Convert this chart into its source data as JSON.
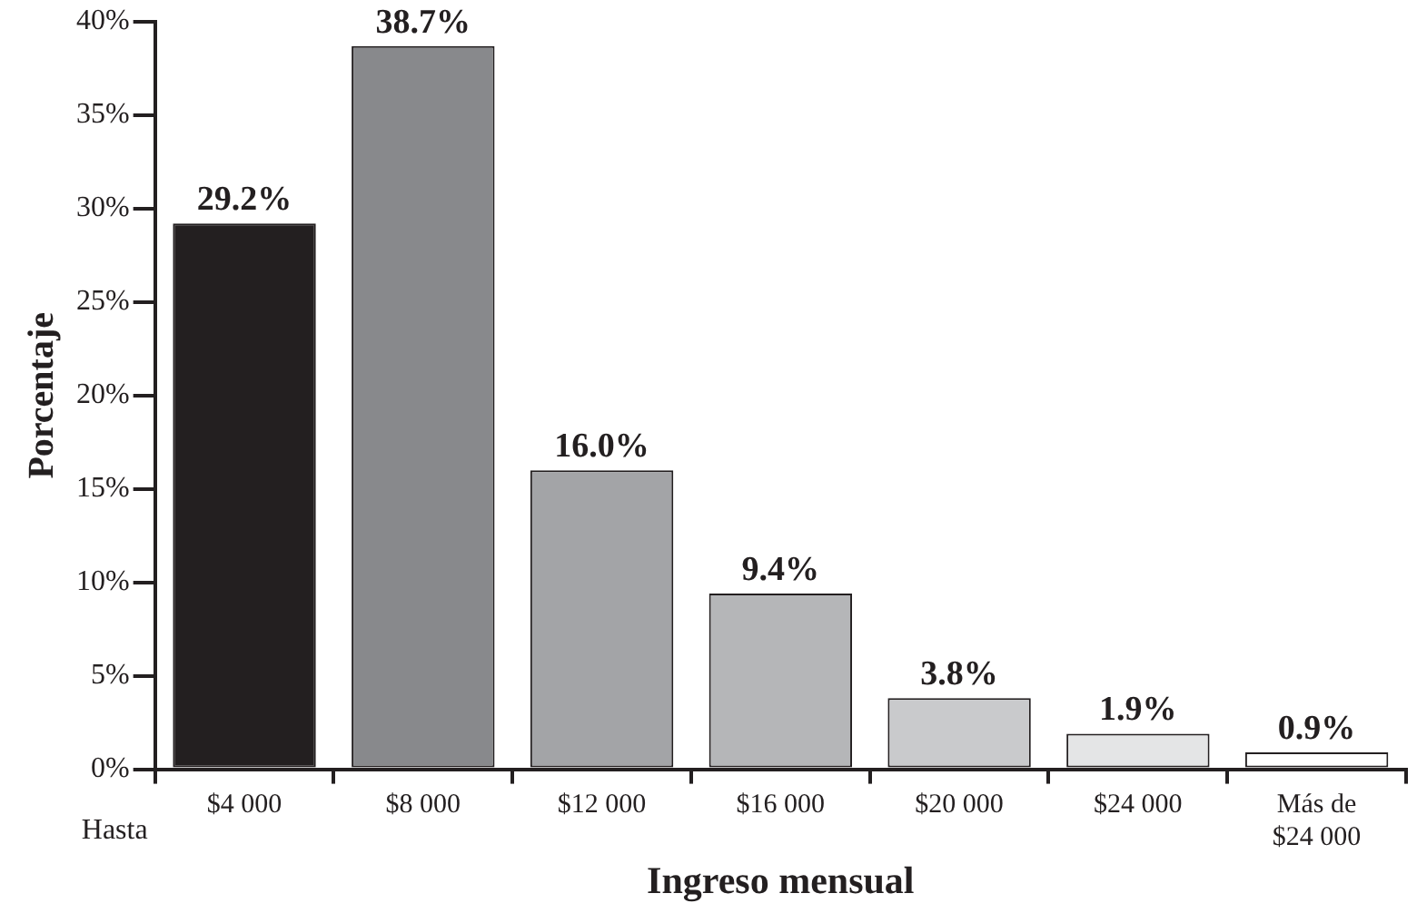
{
  "chart_data": {
    "type": "bar",
    "xlabel": "Ingreso mensual",
    "ylabel": "Porcentaje",
    "categories": [
      "$4 000",
      "$8 000",
      "$12 000",
      "$16 000",
      "$20 000",
      "$24 000",
      "Más de $24 000"
    ],
    "values": [
      29.2,
      38.7,
      16.0,
      9.4,
      3.8,
      1.9,
      0.9
    ],
    "colors": [
      "#231f20",
      "#88898c",
      "#a3a4a7",
      "#b5b6b8",
      "#c9cacc",
      "#e4e5e6",
      "#ffffff"
    ],
    "value_labels": [
      "29.2%",
      "38.7%",
      "16.0%",
      "9.4%",
      "3.8%",
      "1.9%",
      "0.9%"
    ],
    "ylim": [
      0,
      40
    ],
    "yticks": [
      {
        "value": 0,
        "label": "0%"
      },
      {
        "value": 5,
        "label": "5%"
      },
      {
        "value": 10,
        "label": "10%"
      },
      {
        "value": 15,
        "label": "15%"
      },
      {
        "value": 20,
        "label": "20%"
      },
      {
        "value": 25,
        "label": "25%"
      },
      {
        "value": 30,
        "label": "30%"
      },
      {
        "value": 35,
        "label": "35%"
      },
      {
        "value": 40,
        "label": "40%"
      }
    ],
    "annotations": [
      "Hasta"
    ],
    "grid": false,
    "legend": false
  }
}
